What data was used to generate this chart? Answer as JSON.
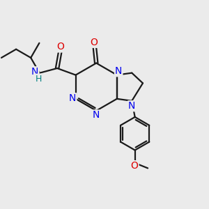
{
  "bg_color": "#ebebeb",
  "bond_color": "#1a1a1a",
  "N_color": "#0000ee",
  "O_color": "#dd0000",
  "H_color": "#008080",
  "line_width": 1.6,
  "figsize": [
    3.0,
    3.0
  ],
  "dpi": 100,
  "xlim": [
    0,
    10
  ],
  "ylim": [
    0,
    10
  ]
}
